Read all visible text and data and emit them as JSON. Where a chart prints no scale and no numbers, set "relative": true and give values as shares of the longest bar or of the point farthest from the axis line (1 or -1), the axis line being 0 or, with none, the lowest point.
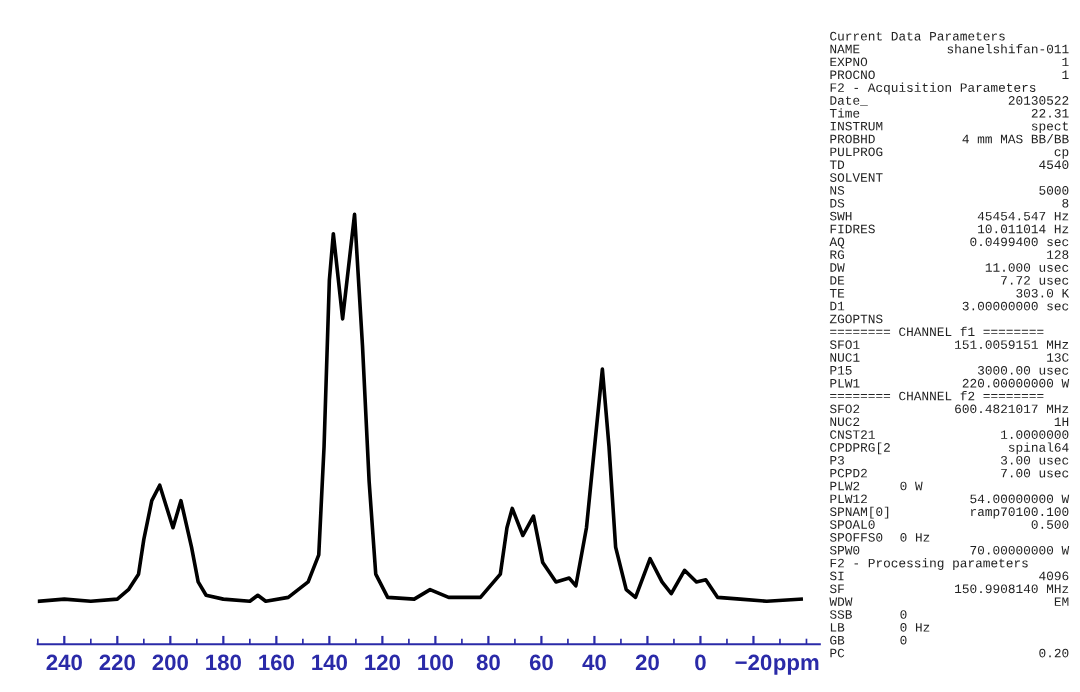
{
  "chart_data": {
    "type": "line",
    "relative": true,
    "xlabel": "ppm",
    "x": [
      250,
      240,
      230,
      220,
      215.8,
      212,
      210,
      207,
      204,
      199,
      196,
      192,
      189.5,
      186.5,
      180,
      170,
      167,
      164,
      155.5,
      148,
      144,
      142,
      140,
      138.5,
      135,
      130.5,
      127.5,
      125,
      122.5,
      118,
      108,
      102,
      95,
      83,
      75.5,
      73,
      71,
      67,
      63,
      59.5,
      54.5,
      49.5,
      47,
      43,
      39.5,
      37,
      34.5,
      32,
      28,
      24.5,
      19,
      14.5,
      11,
      6,
      1.5,
      -2,
      -6.5,
      -15,
      -25,
      -38
    ],
    "series": [
      {
        "color": "#000000",
        "values": [
          0.1,
          0.105,
          0.1,
          0.105,
          0.127,
          0.163,
          0.244,
          0.334,
          0.37,
          0.271,
          0.334,
          0.226,
          0.145,
          0.114,
          0.105,
          0.1,
          0.114,
          0.1,
          0.109,
          0.145,
          0.208,
          0.46,
          0.847,
          0.955,
          0.757,
          1.0,
          0.694,
          0.379,
          0.163,
          0.109,
          0.105,
          0.127,
          0.109,
          0.109,
          0.163,
          0.271,
          0.316,
          0.253,
          0.298,
          0.19,
          0.145,
          0.154,
          0.136,
          0.271,
          0.487,
          0.64,
          0.46,
          0.226,
          0.127,
          0.109,
          0.199,
          0.145,
          0.118,
          0.172,
          0.145,
          0.15,
          0.109,
          0.105,
          0.1,
          0.105
        ]
      }
    ],
    "xlim": [
      250,
      -45
    ],
    "xticks": [
      240,
      220,
      200,
      180,
      160,
      140,
      120,
      100,
      80,
      60,
      40,
      20,
      0,
      {
        "value": -20,
        "label": "−20"
      }
    ],
    "grid": false,
    "legend": false,
    "marker": "none",
    "line_style": "solid",
    "annotations": [
      "Current Data Parameters",
      "NAME\tshanelshifan-011",
      "EXPNO\t1",
      "PROCNO\t1",
      "F2 - Acquisition Parameters",
      "Date_\t20130522",
      "Time\t22.31",
      "INSTRUM\tspect",
      "PROBHD\t4 mm MAS BB/BB",
      "PULPROG\tcp",
      "TD\t4540",
      "SOLVENT",
      "NS\t5000",
      "DS\t8",
      "SWH\t45454.547 Hz",
      "FIDRES\t10.011014 Hz",
      "AQ\t0.0499400 sec",
      "RG\t128",
      "DW\t11.000 usec",
      "DE\t7.72 usec",
      "TE\t303.0 K",
      "D1\t3.00000000 sec",
      "ZGOPTNS",
      "======== CHANNEL f1 ========",
      "SFO1\t151.0059151 MHz",
      "NUC1\t13C",
      "P15\t3000.00 usec",
      "PLW1\t220.00000000 W",
      "======== CHANNEL f2 ========",
      "SFO2\t600.4821017 MHz",
      "NUC2\t1H",
      "CNST21\t1.0000000",
      "CPDPRG[2\tspinal64",
      "P3\t3.00 usec",
      "PCPD2\t7.00 usec",
      "PLW2\t\t0 W",
      "PLW12\t54.00000000 W",
      "SPNAM[0]\tramp70100.100",
      "SPOAL0\t0.500",
      "SPOFFS0\t\t0 Hz",
      "SPW0\t70.00000000 W",
      "F2 - Processing parameters",
      "SI\t4096",
      "SF\t150.9908140 MHz",
      "WDW\tEM",
      "SSB\t\t0",
      "LB\t\t0 Hz",
      "GB\t\t0",
      "PC\t0.20"
    ]
  }
}
